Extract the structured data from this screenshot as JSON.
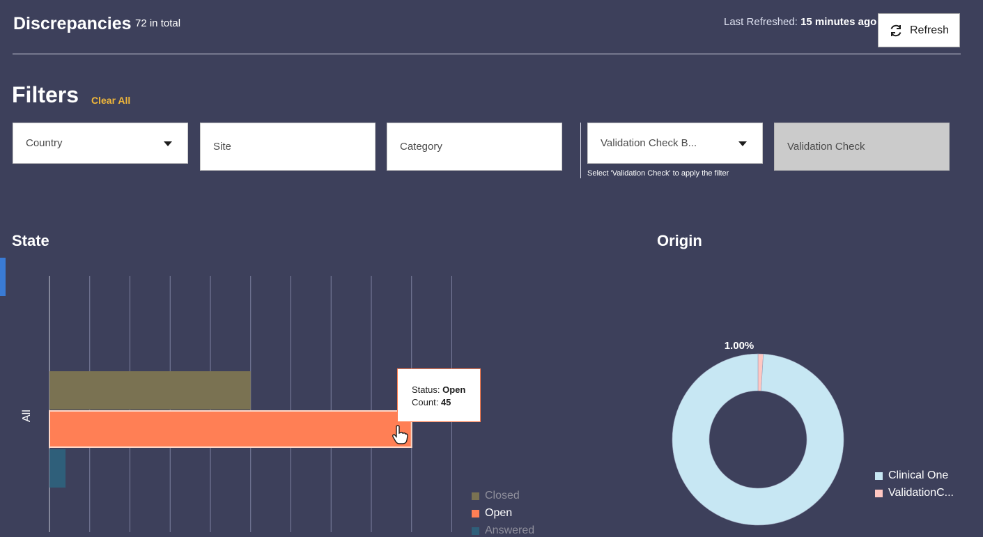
{
  "header": {
    "title": "Discrepancies",
    "total": "72 in total",
    "last_refreshed_label": "Last Refreshed:",
    "last_refreshed_value": "15 minutes ago",
    "refresh_label": "Refresh"
  },
  "filters": {
    "title": "Filters",
    "clear_all": "Clear All",
    "country": "Country",
    "site": "Site",
    "category": "Category",
    "validation_check_by": "Validation Check B...",
    "validation_check": "Validation Check",
    "validation_hint": "Select 'Validation Check' to apply the filter"
  },
  "state_chart": {
    "title": "State",
    "category_label": "All",
    "tooltip": {
      "status_label": "Status:",
      "status_value": "Open",
      "count_label": "Count:",
      "count_value": "45"
    },
    "legend": [
      "Closed",
      "Open",
      "Answered"
    ]
  },
  "origin_chart": {
    "title": "Origin",
    "percent_label": "1.00%",
    "legend": [
      "Clinical One",
      "ValidationC..."
    ]
  },
  "chart_data": [
    {
      "type": "bar",
      "orientation": "horizontal",
      "title": "State",
      "categories": [
        "All"
      ],
      "series": [
        {
          "name": "Closed",
          "values": [
            25
          ],
          "color": "#7a7252"
        },
        {
          "name": "Open",
          "values": [
            45
          ],
          "color": "#ff7f55"
        },
        {
          "name": "Answered",
          "values": [
            2
          ],
          "color": "#2f5f7a"
        }
      ],
      "xlim": [
        0,
        50
      ],
      "grid": true,
      "legend_position": "bottom-right"
    },
    {
      "type": "pie",
      "title": "Origin",
      "donut": true,
      "slices": [
        {
          "label": "Clinical One",
          "value": 99,
          "color": "#c7e7f3"
        },
        {
          "label": "ValidationC...",
          "value": 1,
          "color": "#ffc7c2"
        }
      ],
      "data_label": "1.00%",
      "legend_position": "bottom-right"
    }
  ]
}
